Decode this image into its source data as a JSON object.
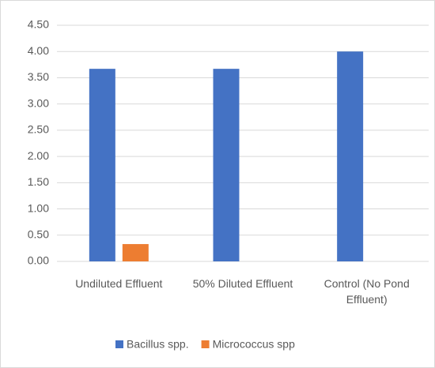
{
  "chart_data": {
    "type": "bar",
    "categories": [
      "Undiluted Effluent",
      "50% Diluted Effluent",
      "Control (No Pond Effluent)"
    ],
    "series": [
      {
        "name": "Bacillus spp.",
        "color": "#4472c4",
        "values": [
          3.67,
          3.67,
          4.0
        ]
      },
      {
        "name": "Micrococcus spp",
        "color": "#ed7d31",
        "values": [
          0.33,
          0,
          0
        ]
      }
    ],
    "ylim": [
      0,
      4.5
    ],
    "yticks": [
      {
        "value": 0,
        "label": "0.00"
      },
      {
        "value": 0.5,
        "label": "0.50"
      },
      {
        "value": 1,
        "label": "1.00"
      },
      {
        "value": 1.5,
        "label": "1.50"
      },
      {
        "value": 2,
        "label": "2.00"
      },
      {
        "value": 2.5,
        "label": "2.50"
      },
      {
        "value": 3,
        "label": "3.00"
      },
      {
        "value": 3.5,
        "label": "3.50"
      },
      {
        "value": 4,
        "label": "4.00"
      },
      {
        "value": 4.5,
        "label": "4.50"
      }
    ],
    "grid": true,
    "legend": "bottom"
  }
}
